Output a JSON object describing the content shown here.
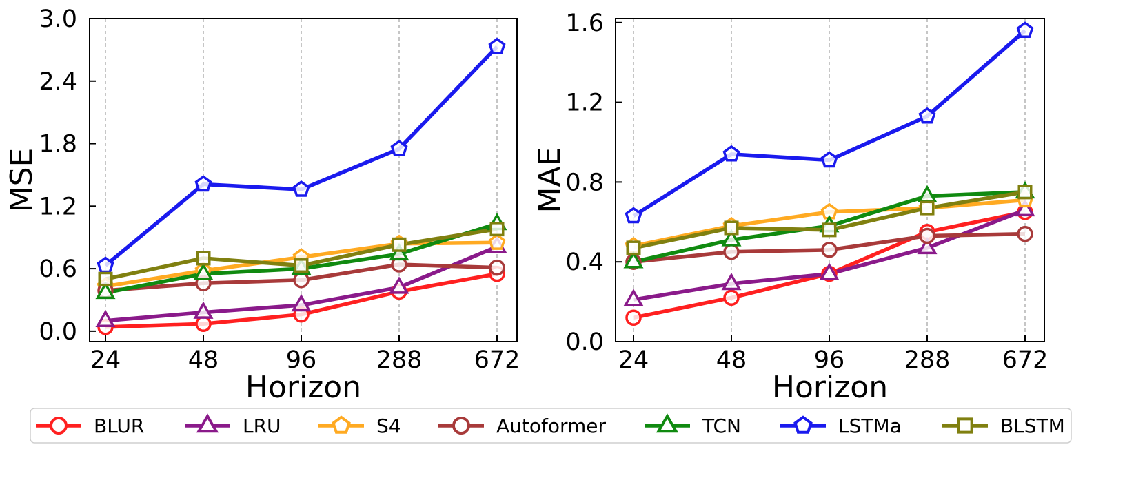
{
  "chart_data": [
    {
      "type": "line",
      "ylabel": "MSE",
      "xlabel": "Horizon",
      "categories": [
        "24",
        "48",
        "96",
        "288",
        "672"
      ],
      "yticks": [
        "0.0",
        "0.6",
        "1.2",
        "1.8",
        "2.4",
        "3.0"
      ],
      "ylim": [
        -0.1,
        3.0
      ],
      "grid": "vertical-dashed",
      "series": [
        {
          "name": "BLUR",
          "color": "#ff2020",
          "marker": "circle",
          "values": [
            0.04,
            0.07,
            0.16,
            0.38,
            0.55
          ]
        },
        {
          "name": "LRU",
          "color": "#8a1a8a",
          "marker": "triangle",
          "values": [
            0.1,
            0.18,
            0.25,
            0.42,
            0.81
          ]
        },
        {
          "name": "S4",
          "color": "#ffaa22",
          "marker": "pentagon",
          "values": [
            0.43,
            0.58,
            0.71,
            0.84,
            0.85
          ]
        },
        {
          "name": "Autoformer",
          "color": "#a83a3a",
          "marker": "circle",
          "values": [
            0.39,
            0.46,
            0.49,
            0.64,
            0.61
          ]
        },
        {
          "name": "TCN",
          "color": "#108a10",
          "marker": "triangle",
          "values": [
            0.37,
            0.55,
            0.6,
            0.74,
            1.03
          ]
        },
        {
          "name": "LSTMa",
          "color": "#1a1aee",
          "marker": "pentagon",
          "values": [
            0.63,
            1.41,
            1.36,
            1.75,
            2.73
          ]
        },
        {
          "name": "BLSTM",
          "color": "#808010",
          "marker": "square",
          "values": [
            0.5,
            0.7,
            0.63,
            0.83,
            0.98
          ]
        }
      ]
    },
    {
      "type": "line",
      "ylabel": "MAE",
      "xlabel": "Horizon",
      "categories": [
        "24",
        "48",
        "96",
        "288",
        "672"
      ],
      "yticks": [
        "0.0",
        "0.4",
        "0.8",
        "1.2",
        "1.6"
      ],
      "ylim": [
        0.0,
        1.62
      ],
      "grid": "vertical-dashed",
      "series": [
        {
          "name": "BLUR",
          "color": "#ff2020",
          "marker": "circle",
          "values": [
            0.12,
            0.22,
            0.34,
            0.55,
            0.65
          ]
        },
        {
          "name": "LRU",
          "color": "#8a1a8a",
          "marker": "triangle",
          "values": [
            0.21,
            0.29,
            0.34,
            0.47,
            0.66
          ]
        },
        {
          "name": "S4",
          "color": "#ffaa22",
          "marker": "pentagon",
          "values": [
            0.48,
            0.58,
            0.65,
            0.67,
            0.71
          ]
        },
        {
          "name": "Autoformer",
          "color": "#a83a3a",
          "marker": "circle",
          "values": [
            0.4,
            0.45,
            0.46,
            0.53,
            0.54
          ]
        },
        {
          "name": "TCN",
          "color": "#108a10",
          "marker": "triangle",
          "values": [
            0.4,
            0.51,
            0.58,
            0.73,
            0.75
          ]
        },
        {
          "name": "LSTMa",
          "color": "#1a1aee",
          "marker": "pentagon",
          "values": [
            0.63,
            0.94,
            0.91,
            1.13,
            1.56
          ]
        },
        {
          "name": "BLSTM",
          "color": "#808010",
          "marker": "square",
          "values": [
            0.47,
            0.57,
            0.56,
            0.67,
            0.75
          ]
        }
      ]
    }
  ],
  "legend": {
    "placement": "bottom",
    "entries": [
      "BLUR",
      "LRU",
      "S4",
      "Autoformer",
      "TCN",
      "LSTMa",
      "BLSTM"
    ]
  }
}
